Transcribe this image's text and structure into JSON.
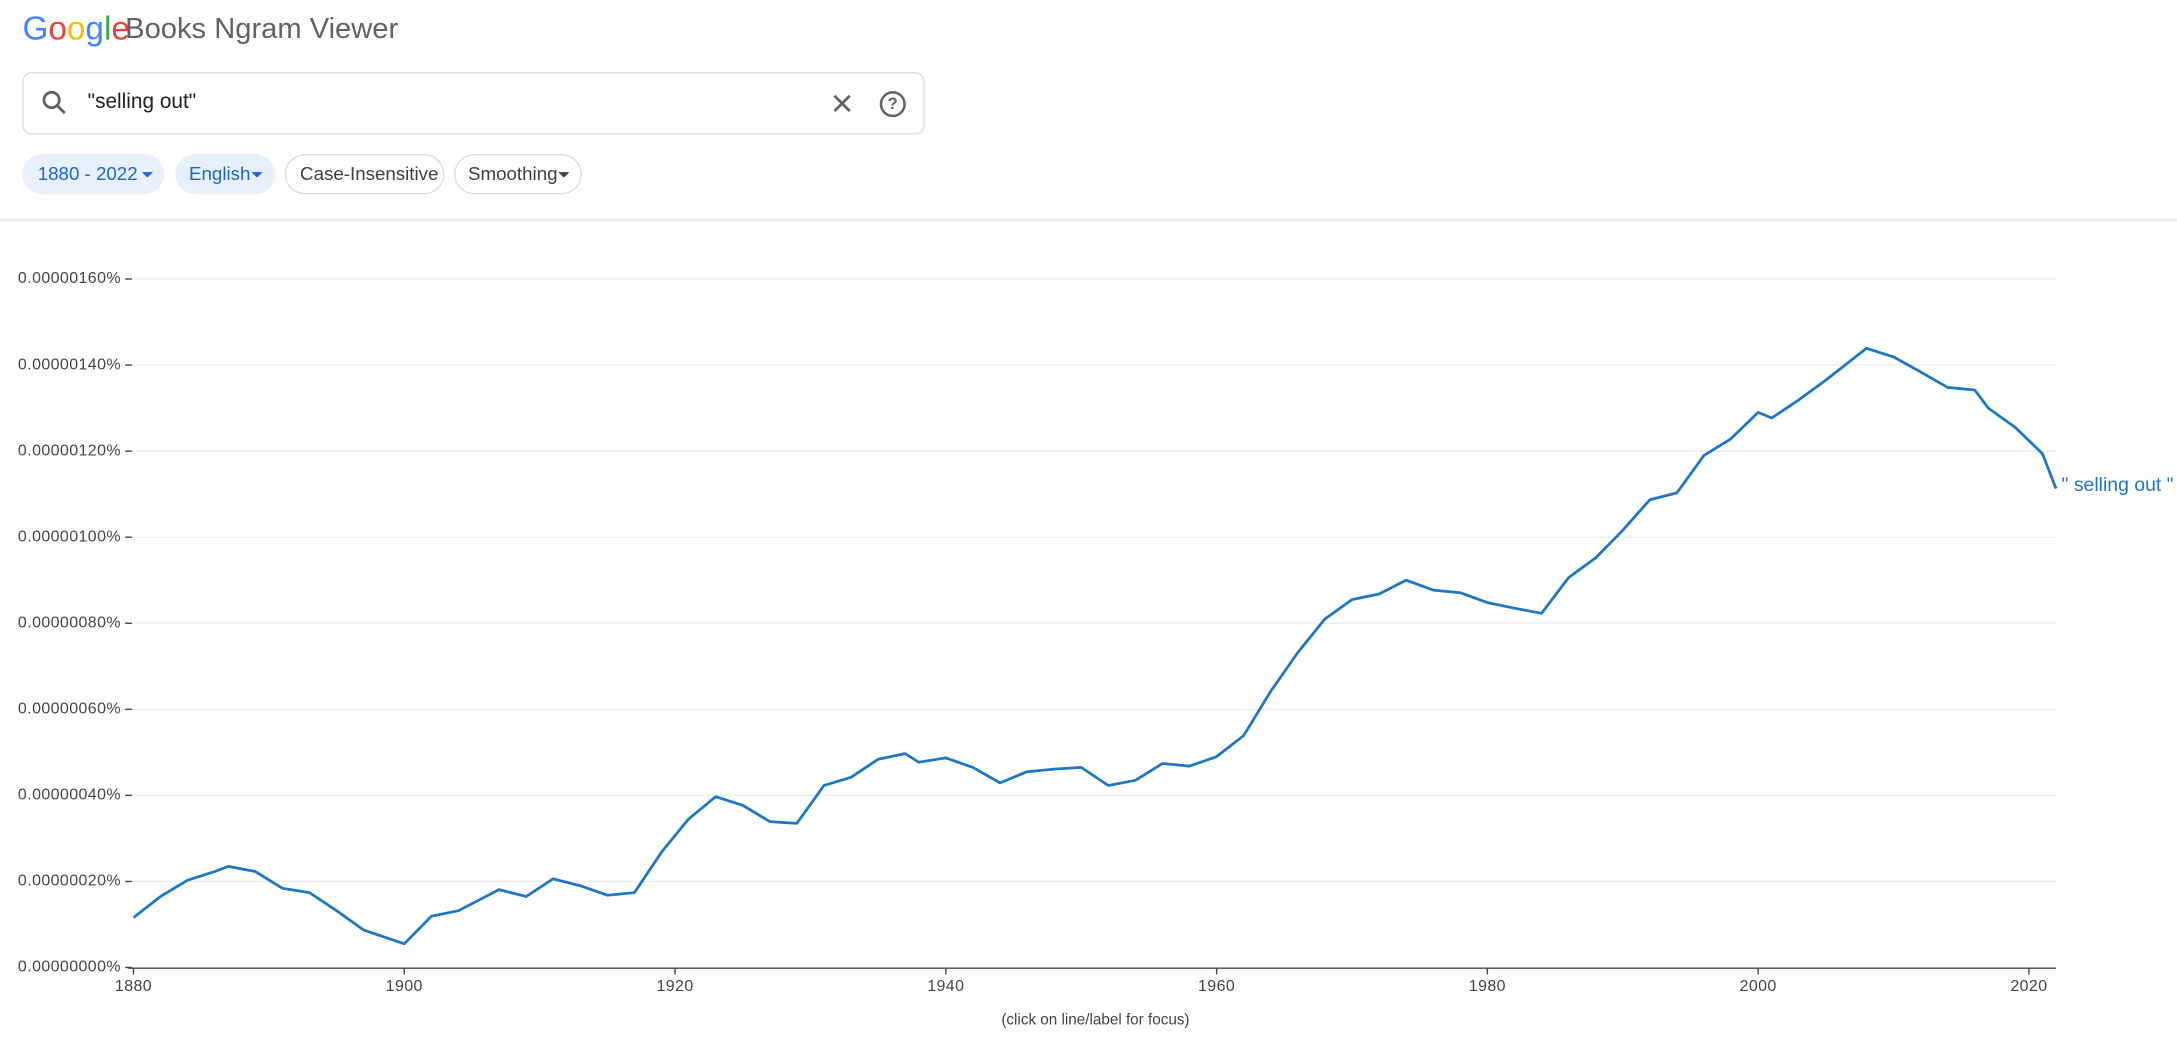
{
  "header": {
    "logo": "Google",
    "title": "Books Ngram Viewer"
  },
  "search": {
    "query": "\"selling out\""
  },
  "filters": [
    "1880 - 2022",
    "English",
    "Case-Insensitive",
    "Smoothing"
  ],
  "chart_data": {
    "type": "line",
    "caption": "(click on line/label for focus)",
    "x": [
      1880,
      1882,
      1884,
      1886,
      1887,
      1889,
      1891,
      1893,
      1895,
      1897,
      1900,
      1902,
      1904,
      1907,
      1909,
      1911,
      1913,
      1915,
      1917,
      1919,
      1921,
      1923,
      1925,
      1927,
      1929,
      1931,
      1933,
      1935,
      1937,
      1938,
      1940,
      1942,
      1944,
      1946,
      1948,
      1950,
      1952,
      1954,
      1956,
      1958,
      1960,
      1962,
      1964,
      1966,
      1968,
      1970,
      1972,
      1974,
      1976,
      1978,
      1980,
      1982,
      1984,
      1986,
      1988,
      1990,
      1992,
      1994,
      1996,
      1998,
      2000,
      2001,
      2003,
      2005,
      2008,
      2010,
      2012,
      2014,
      2016,
      2017,
      2019,
      2021,
      2022
    ],
    "series": [
      {
        "name": "\" selling out \"",
        "color": "#1f77c4",
        "values": [
          1.16e-07,
          1.65e-07,
          2.03e-07,
          2.23e-07,
          2.35e-07,
          2.23e-07,
          1.84e-07,
          1.74e-07,
          1.32e-07,
          8.7e-08,
          5.5e-08,
          1.19e-07,
          1.32e-07,
          1.81e-07,
          1.65e-07,
          2.06e-07,
          1.9e-07,
          1.68e-07,
          1.74e-07,
          2.68e-07,
          3.45e-07,
          3.97e-07,
          3.77e-07,
          3.39e-07,
          3.35e-07,
          4.23e-07,
          4.42e-07,
          4.84e-07,
          4.97e-07,
          4.77e-07,
          4.87e-07,
          4.65e-07,
          4.29e-07,
          4.55e-07,
          4.61e-07,
          4.65e-07,
          4.23e-07,
          4.35e-07,
          4.74e-07,
          4.68e-07,
          4.9e-07,
          5.39e-07,
          6.42e-07,
          7.32e-07,
          8.1e-07,
          8.55e-07,
          8.68e-07,
          9e-07,
          8.77e-07,
          8.71e-07,
          8.48e-07,
          8.35e-07,
          8.23e-07,
          9.06e-07,
          9.52e-07,
          1.016e-06,
          1.087e-06,
          1.103e-06,
          1.19e-06,
          1.229e-06,
          1.29e-06,
          1.277e-06,
          1.319e-06,
          1.365e-06,
          1.439e-06,
          1.419e-06,
          1.384e-06,
          1.348e-06,
          1.342e-06,
          1.3e-06,
          1.255e-06,
          1.194e-06,
          1.113e-06
        ]
      }
    ],
    "xlim": [
      1880,
      2022
    ],
    "xticks": [
      1880,
      1900,
      1920,
      1940,
      1960,
      1980,
      2000,
      2020
    ],
    "ylim": [
      0,
      1.6e-06
    ],
    "yticks": [
      {
        "value": 0,
        "label": "0.00000000%"
      },
      {
        "value": 2e-07,
        "label": "0.00000020%"
      },
      {
        "value": 4e-07,
        "label": "0.00000040%"
      },
      {
        "value": 6e-07,
        "label": "0.00000060%"
      },
      {
        "value": 8e-07,
        "label": "0.00000080%"
      },
      {
        "value": 1e-06,
        "label": "0.00000100%"
      },
      {
        "value": 1.2e-06,
        "label": "0.00000120%"
      },
      {
        "value": 1.4e-06,
        "label": "0.00000140%"
      },
      {
        "value": 1.6e-06,
        "label": "0.00000160%"
      }
    ],
    "grid": true
  }
}
